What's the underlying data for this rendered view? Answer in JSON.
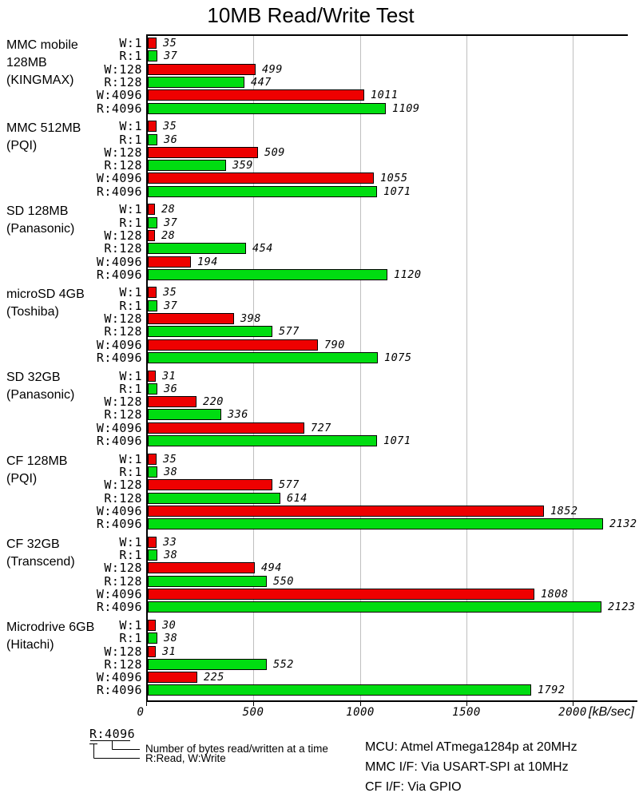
{
  "chart_data": {
    "type": "bar",
    "orientation": "horizontal",
    "title": "10MB Read/Write Test",
    "xlabel": "[kB/sec]",
    "xlim": [
      0,
      2260
    ],
    "x_ticks": [
      0,
      500,
      1000,
      1500,
      2000
    ],
    "grid": "vertical-gridlines-on",
    "bar_categories": [
      "W:1",
      "R:1",
      "W:128",
      "R:128",
      "W:4096",
      "R:4096"
    ],
    "colors": {
      "write_bar": "#ee0000",
      "read_bar": "#00dd11",
      "gridline": "#bfbfbf",
      "axis": "#000000"
    },
    "groups": [
      {
        "name": "MMC mobile 128MB (KINGMAX)",
        "label_lines": [
          "MMC mobile",
          "128MB",
          "(KINGMAX)"
        ],
        "values": [
          35,
          37,
          499,
          447,
          1011,
          1109
        ]
      },
      {
        "name": "MMC 512MB (PQI)",
        "label_lines": [
          "MMC 512MB",
          "(PQI)"
        ],
        "values": [
          35,
          36,
          509,
          359,
          1055,
          1071
        ]
      },
      {
        "name": "SD 128MB (Panasonic)",
        "label_lines": [
          "SD 128MB",
          "(Panasonic)"
        ],
        "values": [
          28,
          37,
          28,
          454,
          194,
          1120
        ]
      },
      {
        "name": "microSD 4GB (Toshiba)",
        "label_lines": [
          "microSD 4GB",
          "(Toshiba)"
        ],
        "values": [
          35,
          37,
          398,
          577,
          790,
          1075
        ]
      },
      {
        "name": "SD 32GB (Panasonic)",
        "label_lines": [
          "SD 32GB",
          "(Panasonic)"
        ],
        "values": [
          31,
          36,
          220,
          336,
          727,
          1071
        ]
      },
      {
        "name": "CF 128MB (PQI)",
        "label_lines": [
          "CF 128MB",
          "(PQI)"
        ],
        "values": [
          35,
          38,
          577,
          614,
          1852,
          2132
        ]
      },
      {
        "name": "CF 32GB (Transcend)",
        "label_lines": [
          "CF 32GB",
          "(Transcend)"
        ],
        "values": [
          33,
          38,
          494,
          550,
          1808,
          2123
        ]
      },
      {
        "name": "Microdrive 6GB (Hitachi)",
        "label_lines": [
          "Microdrive 6GB",
          "(Hitachi)"
        ],
        "values": [
          30,
          38,
          31,
          552,
          225,
          1792
        ]
      }
    ]
  },
  "legend": {
    "example_label": "R:4096",
    "note_bytes": "Number of bytes read/written at a time",
    "note_rw": "R:Read, W:Write"
  },
  "footer": {
    "lines": [
      "MCU: Atmel ATmega1284p at 20MHz",
      "MMC I/F: Via USART-SPI at 10MHz",
      "CF I/F: Via GPIO"
    ]
  }
}
